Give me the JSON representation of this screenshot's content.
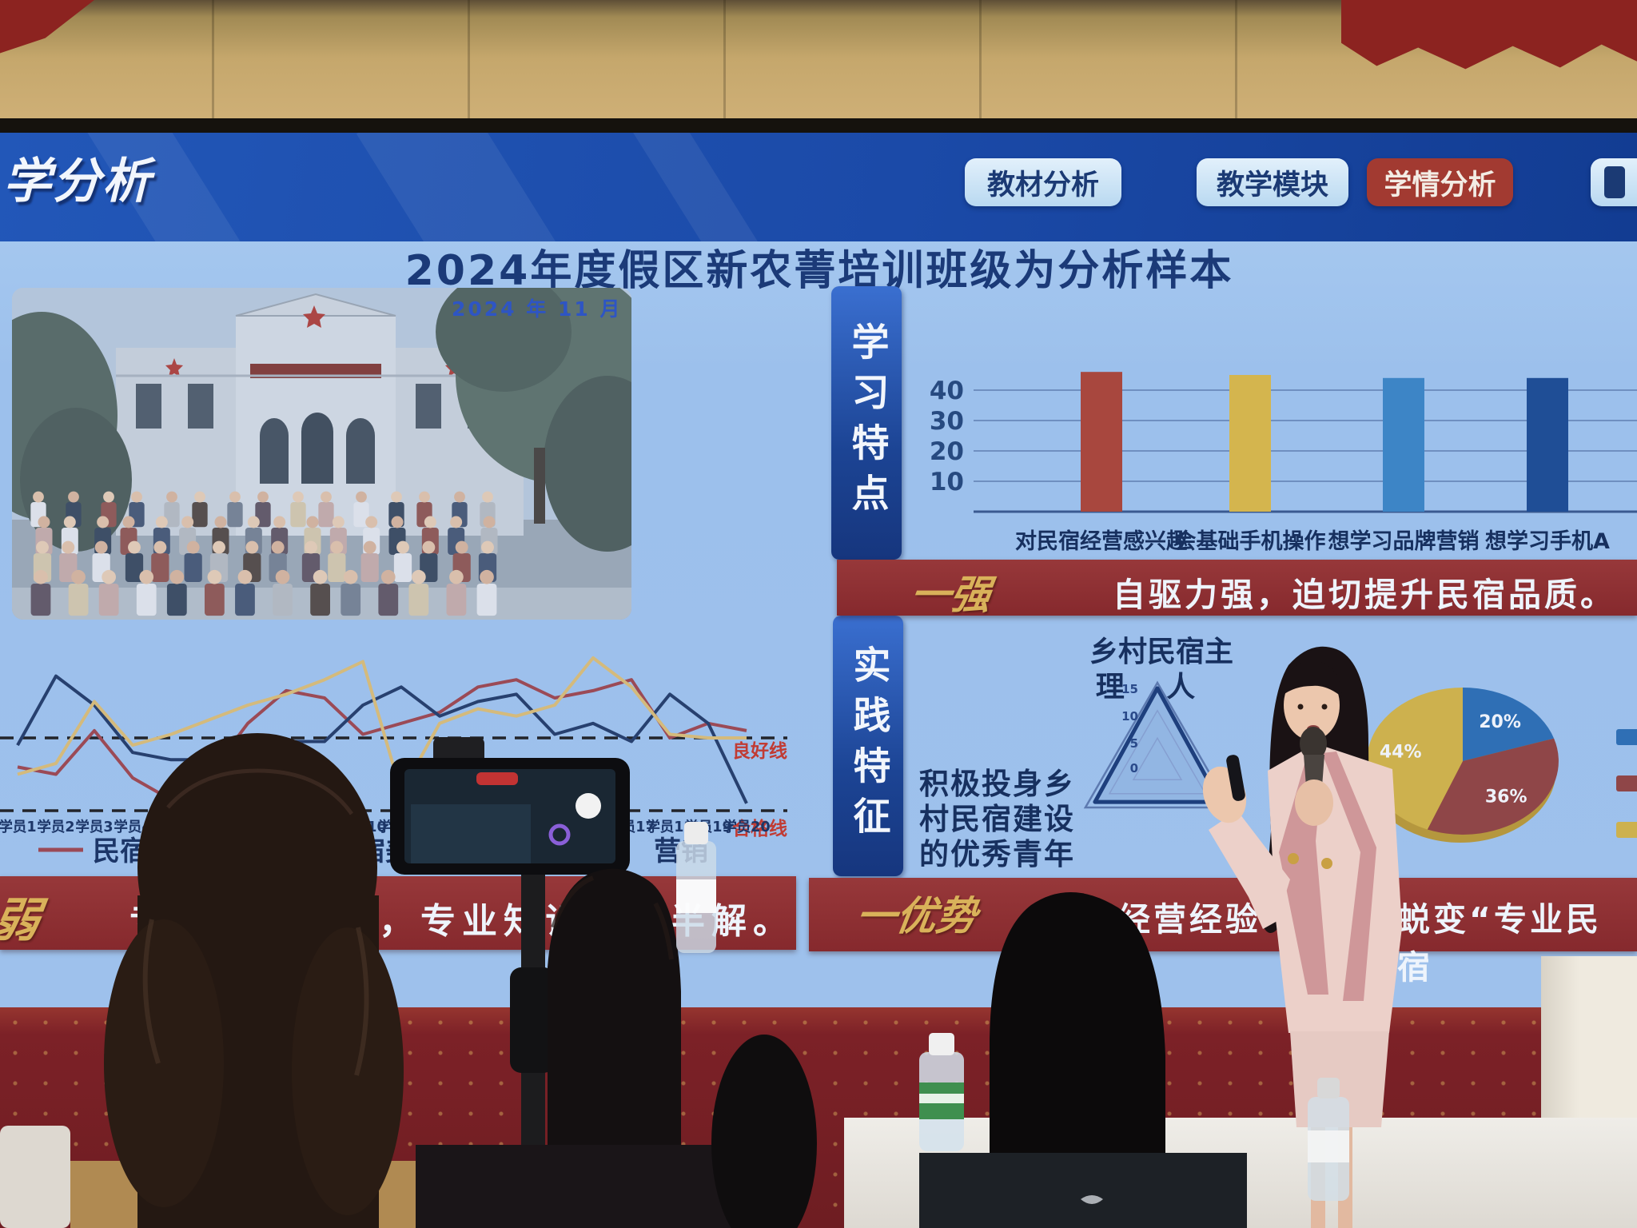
{
  "screen": {
    "banner": {
      "partial_title": "学分析",
      "tabs": [
        {
          "label": "教材分析",
          "active": false,
          "partial": false
        },
        {
          "label": "教学模块",
          "active": false,
          "partial": false
        },
        {
          "label": "学情分析",
          "active": true,
          "partial": false
        },
        {
          "label": "",
          "active": false,
          "partial": true
        }
      ]
    },
    "slide": {
      "title": "2024年度假区新农菁培训班级为分析样本",
      "photo_date": "2024 年 11 月",
      "section1": {
        "sidebar": "学习特点",
        "highlight_label": "一强",
        "highlight_text": "自驱力强，迫切提升民宿品质。"
      },
      "section2": {
        "sidebar": "实践特征",
        "radar_title_line1": "乡村民宿主",
        "radar_title_line2": "理 人",
        "axis_label_lines": [
          "积极投身乡",
          "村民宿建设",
          "的优秀青年"
        ],
        "highlight_label": "一优势",
        "highlight_fragment1": "经营经验",
        "highlight_fragment2": "蜕变“专业民宿"
      },
      "section3": {
        "highlight_label": "弱",
        "highlight_text": "专业基础较弱，专业知识一知半解。"
      }
    }
  },
  "chart_data": [
    {
      "type": "bar",
      "title": "",
      "categories": [
        "对民宿经营感兴趣",
        "会基础手机操作",
        "想学习品牌营销",
        "想学习手机A"
      ],
      "values": [
        46,
        45,
        44,
        44
      ],
      "colors": [
        "#a8473e",
        "#d4b54e",
        "#3d85c6",
        "#1f4e96"
      ],
      "yticks": [
        10,
        20,
        30,
        40
      ],
      "ylim": [
        0,
        50
      ],
      "grid": true
    },
    {
      "type": "line",
      "x_labels": [
        "学员1",
        "学员2",
        "学员3",
        "学员4",
        "学员5",
        "学员6",
        "学员7",
        "学员8",
        "学员9",
        "学员10",
        "学员11",
        "学员12",
        "学员13",
        "学员14",
        "学员15",
        "学员16",
        "学员17",
        "学员18",
        "学员19",
        "学员20"
      ],
      "series": [
        {
          "name": "民宿专业规范",
          "color": "#9b4a56",
          "values": [
            72,
            70,
            82,
            69,
            63,
            70,
            84,
            93,
            91,
            81,
            84,
            87,
            94,
            96,
            91,
            93,
            96,
            80,
            84,
            82
          ]
        },
        {
          "name": "民宿美学素养",
          "color": "#27406f",
          "values": [
            78,
            97,
            89,
            76,
            74,
            74,
            63,
            79,
            79,
            89,
            94,
            86,
            90,
            92,
            81,
            84,
            79,
            92,
            84,
            62
          ]
        },
        {
          "name": "营销",
          "color": "#d4ba7c",
          "values": [
            70,
            73,
            90,
            78,
            81,
            85,
            89,
            92,
            96,
            101,
            65,
            84,
            88,
            86,
            89,
            102,
            94,
            81,
            80,
            80
          ]
        }
      ],
      "thresholds": [
        {
          "label": "良好线",
          "value": 80
        },
        {
          "label": "合格线",
          "value": 60
        }
      ],
      "legend_position": "bottom"
    },
    {
      "type": "radar",
      "title": "乡村民宿主理人",
      "axes": [
        "乡村民宿主理人",
        "积极投身乡村民宿建设的优秀青年",
        ""
      ],
      "ticks": [
        0,
        5,
        10,
        15
      ],
      "values": [
        14,
        13,
        13
      ]
    },
    {
      "type": "pie",
      "values": [
        20,
        36,
        44
      ],
      "labels": [
        "20%",
        "36%",
        "44%"
      ],
      "colors": [
        "#2f6fb5",
        "#8f4648",
        "#cdb14e"
      ]
    }
  ]
}
